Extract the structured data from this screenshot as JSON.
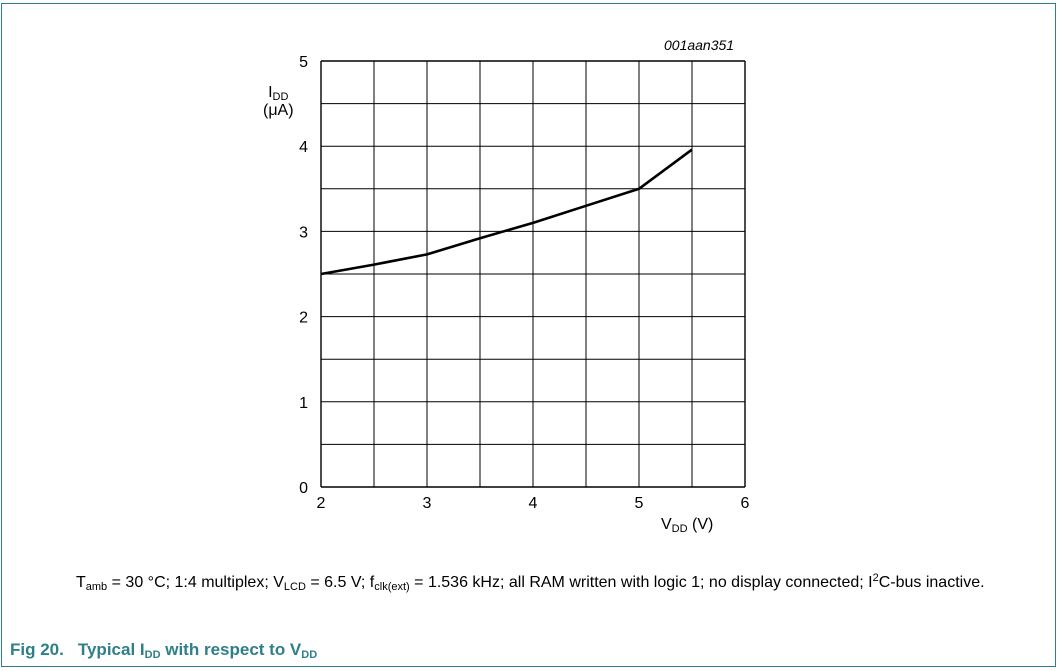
{
  "figure_id": "001aan351",
  "chart_data": {
    "type": "line",
    "ylabel": {
      "main": "I",
      "sub": "DD",
      "unit": "(μA)"
    },
    "xlabel": {
      "main": "V",
      "sub": "DD",
      "unit": " (V)"
    },
    "xlim": [
      2,
      6
    ],
    "ylim": [
      0,
      5
    ],
    "x_ticks": [
      "2",
      "3",
      "4",
      "5",
      "6"
    ],
    "y_ticks": [
      "0",
      "1",
      "2",
      "3",
      "4",
      "5"
    ],
    "grid": true,
    "series": [
      {
        "x": [
          2.0,
          2.5,
          3.0,
          3.5,
          4.0,
          4.5,
          5.0,
          5.5
        ],
        "y": [
          2.5,
          2.61,
          2.73,
          2.92,
          3.1,
          3.3,
          3.5,
          3.96
        ]
      }
    ]
  },
  "note": {
    "t": "T",
    "t_sub": "amb",
    "t_rest": " = 30 °C; 1:4 multiplex; V",
    "v_sub": "LCD",
    "v_rest": " = 6.5 V; f",
    "f_sub": "clk(ext)",
    "f_rest": " = 1.536 kHz; all RAM written with logic 1; no display connected; I",
    "i_sup": "2",
    "i_rest": "C-bus inactive."
  },
  "caption": {
    "number": "Fig 20.",
    "text1": "Typical I",
    "sub1": "DD",
    "text2": " with respect to V",
    "sub2": "DD"
  },
  "colors": {
    "accent": "#2f7f8a",
    "line": "#000000",
    "grid": "#000000"
  }
}
